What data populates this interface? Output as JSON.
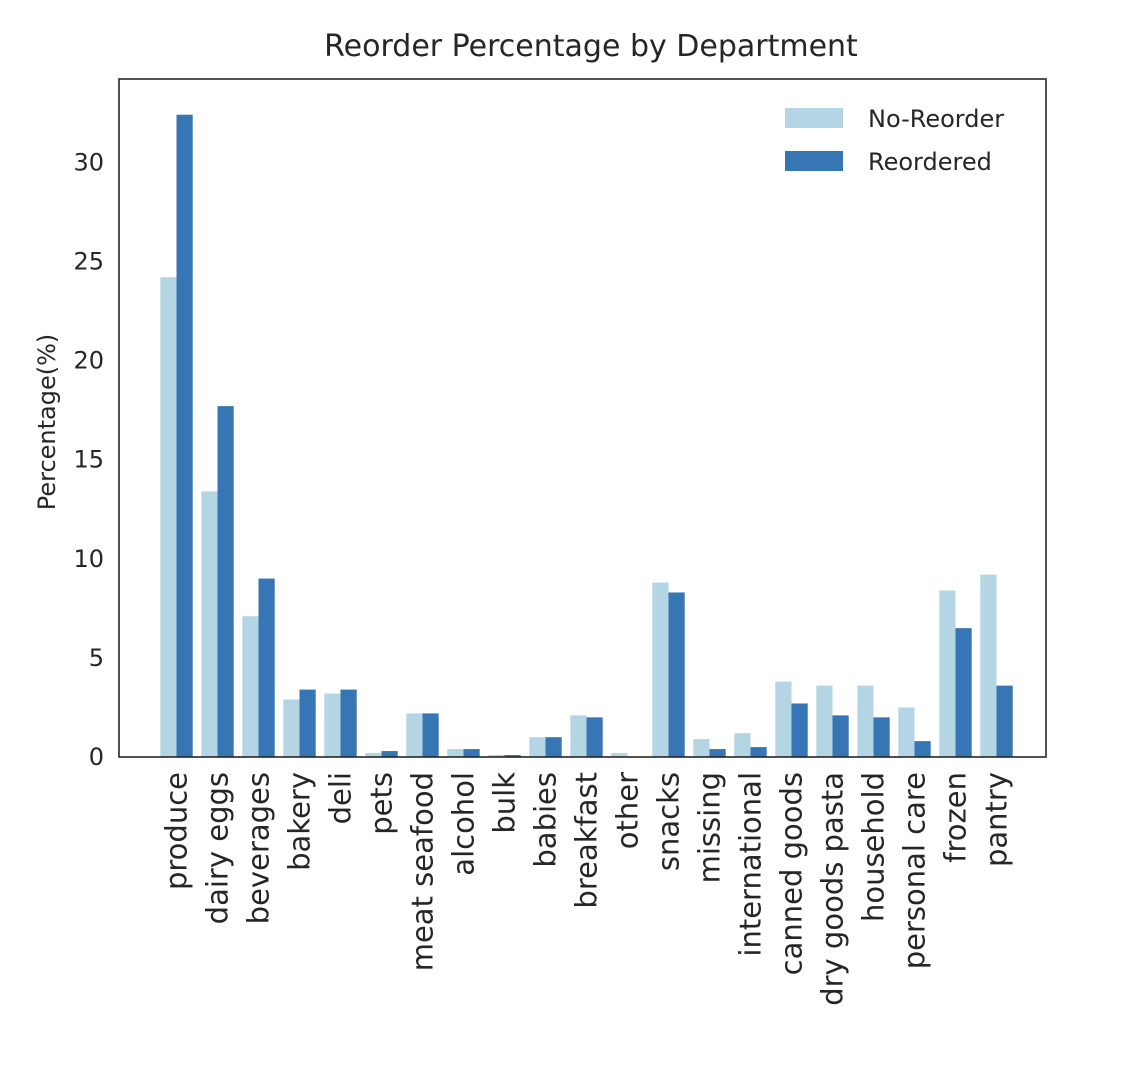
{
  "chart_data": {
    "type": "bar",
    "title": "Reorder Percentage by Department",
    "xlabel": "",
    "ylabel": "Percentage(%)",
    "ylim": [
      0,
      34.2
    ],
    "yticks": [
      0,
      5,
      10,
      15,
      20,
      25,
      30
    ],
    "grid": false,
    "legend_position": "top-right",
    "categories": [
      "produce",
      "dairy eggs",
      "beverages",
      "bakery",
      "deli",
      "pets",
      "meat seafood",
      "alcohol",
      "bulk",
      "babies",
      "breakfast",
      "other",
      "snacks",
      "missing",
      "international",
      "canned goods",
      "dry goods pasta",
      "household",
      "personal care",
      "frozen",
      "pantry"
    ],
    "series": [
      {
        "name": "No-Reorder",
        "color": "#b3d5e4",
        "values": [
          24.2,
          13.4,
          7.1,
          2.9,
          3.2,
          0.2,
          2.2,
          0.4,
          0.1,
          1.0,
          2.1,
          0.2,
          8.8,
          0.9,
          1.2,
          3.8,
          3.6,
          3.6,
          2.5,
          8.4,
          9.2
        ]
      },
      {
        "name": "Reordered",
        "color": "#3776b4",
        "values": [
          32.4,
          17.7,
          9.0,
          3.4,
          3.4,
          0.3,
          2.2,
          0.4,
          0.1,
          1.0,
          2.0,
          0.0,
          8.3,
          0.4,
          0.5,
          2.7,
          2.1,
          2.0,
          0.8,
          6.5,
          3.6
        ]
      }
    ]
  }
}
